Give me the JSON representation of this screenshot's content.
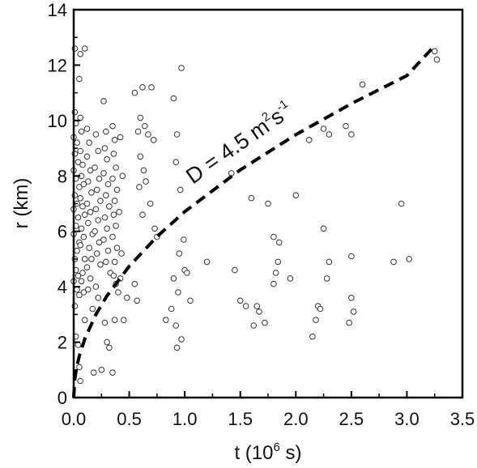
{
  "chart_data": {
    "type": "scatter",
    "xlim": [
      0,
      3.5
    ],
    "ylim": [
      0,
      14
    ],
    "x_ticks": [
      "0.0",
      "0.5",
      "1.0",
      "1.5",
      "2.0",
      "2.5",
      "3.0",
      "3.5"
    ],
    "y_ticks": [
      "0",
      "2",
      "4",
      "6",
      "8",
      "10",
      "12",
      "14"
    ],
    "xlabel": {
      "base": "t (10",
      "sup": "6",
      "tail": " s)"
    },
    "ylabel": "r (km)",
    "grid": false,
    "marker": "open-circle",
    "marker_color": "#333333",
    "curve": {
      "style": "dashed",
      "color": "#000000",
      "D": 4.5,
      "label_parts": {
        "a": "D = 4.5 m",
        "b": "2",
        "c": "s",
        "d": "-1"
      },
      "x": [
        0,
        0.01,
        0.025,
        0.05,
        0.1,
        0.2,
        0.3,
        0.5,
        0.75,
        1.0,
        1.5,
        2.0,
        2.5,
        3.0,
        3.25
      ],
      "y": [
        0,
        0.67,
        1.06,
        1.5,
        2.12,
        3.0,
        3.67,
        4.74,
        5.81,
        6.71,
        8.22,
        9.49,
        10.61,
        11.62,
        12.7
      ]
    },
    "points": [
      [
        0.01,
        10.3
      ],
      [
        0.02,
        9.9
      ],
      [
        0.0,
        9.4
      ],
      [
        0.03,
        9.2
      ],
      [
        0.01,
        8.8
      ],
      [
        0.04,
        8.5
      ],
      [
        0.0,
        8.2
      ],
      [
        0.02,
        7.9
      ],
      [
        0.05,
        7.6
      ],
      [
        0.01,
        7.3
      ],
      [
        0.03,
        7.0
      ],
      [
        0.0,
        6.8
      ],
      [
        0.04,
        6.5
      ],
      [
        0.02,
        6.2
      ],
      [
        0.0,
        5.9
      ],
      [
        0.05,
        5.6
      ],
      [
        0.03,
        5.3
      ],
      [
        0.01,
        5.0
      ],
      [
        0.02,
        4.6
      ],
      [
        0.04,
        4.4
      ],
      [
        0.0,
        4.2
      ],
      [
        0.03,
        3.9
      ],
      [
        0.05,
        3.7
      ],
      [
        0.01,
        3.3
      ],
      [
        0.02,
        2.2
      ],
      [
        0.04,
        1.9
      ],
      [
        0.06,
        10.1
      ],
      [
        0.07,
        9.6
      ],
      [
        0.06,
        8.9
      ],
      [
        0.08,
        8.4
      ],
      [
        0.07,
        8.0
      ],
      [
        0.09,
        7.7
      ],
      [
        0.06,
        7.2
      ],
      [
        0.08,
        6.9
      ],
      [
        0.1,
        6.6
      ],
      [
        0.07,
        6.1
      ],
      [
        0.09,
        5.8
      ],
      [
        0.06,
        5.5
      ],
      [
        0.1,
        5.0
      ],
      [
        0.08,
        4.5
      ],
      [
        0.07,
        4.2
      ],
      [
        0.09,
        3.8
      ],
      [
        0.1,
        2.8
      ],
      [
        0.12,
        9.7
      ],
      [
        0.14,
        9.2
      ],
      [
        0.12,
        8.7
      ],
      [
        0.15,
        8.2
      ],
      [
        0.13,
        7.8
      ],
      [
        0.16,
        7.4
      ],
      [
        0.12,
        7.0
      ],
      [
        0.15,
        6.7
      ],
      [
        0.13,
        6.3
      ],
      [
        0.17,
        5.9
      ],
      [
        0.14,
        5.4
      ],
      [
        0.16,
        5.0
      ],
      [
        0.12,
        4.7
      ],
      [
        0.15,
        4.3
      ],
      [
        0.13,
        3.9
      ],
      [
        0.17,
        3.2
      ],
      [
        0.2,
        9.5
      ],
      [
        0.22,
        8.9
      ],
      [
        0.19,
        8.3
      ],
      [
        0.23,
        7.9
      ],
      [
        0.21,
        7.5
      ],
      [
        0.24,
        7.1
      ],
      [
        0.2,
        6.8
      ],
      [
        0.22,
        6.4
      ],
      [
        0.19,
        6.0
      ],
      [
        0.23,
        5.6
      ],
      [
        0.21,
        5.2
      ],
      [
        0.24,
        4.8
      ],
      [
        0.2,
        4.0
      ],
      [
        0.22,
        3.6
      ],
      [
        0.18,
        0.9
      ],
      [
        0.27,
        10.7
      ],
      [
        0.29,
        9.6
      ],
      [
        0.28,
        9.0
      ],
      [
        0.3,
        8.6
      ],
      [
        0.27,
        8.1
      ],
      [
        0.31,
        7.7
      ],
      [
        0.29,
        7.3
      ],
      [
        0.32,
        6.9
      ],
      [
        0.28,
        6.5
      ],
      [
        0.3,
        6.1
      ],
      [
        0.27,
        5.7
      ],
      [
        0.31,
        5.3
      ],
      [
        0.29,
        4.9
      ],
      [
        0.33,
        4.5
      ],
      [
        0.28,
        2.7
      ],
      [
        0.3,
        2.0
      ],
      [
        0.32,
        1.8
      ],
      [
        0.35,
        9.8
      ],
      [
        0.37,
        9.3
      ],
      [
        0.36,
        8.8
      ],
      [
        0.38,
        8.3
      ],
      [
        0.35,
        7.9
      ],
      [
        0.39,
        7.5
      ],
      [
        0.37,
        7.1
      ],
      [
        0.36,
        6.6
      ],
      [
        0.38,
        6.2
      ],
      [
        0.35,
        5.8
      ],
      [
        0.39,
        5.4
      ],
      [
        0.37,
        4.9
      ],
      [
        0.36,
        4.4
      ],
      [
        0.38,
        4.1
      ],
      [
        0.4,
        3.8
      ],
      [
        0.37,
        2.8
      ],
      [
        0.35,
        0.9
      ],
      [
        0.42,
        9.4
      ],
      [
        0.44,
        8.0
      ],
      [
        0.41,
        6.7
      ],
      [
        0.43,
        5.2
      ],
      [
        0.42,
        4.3
      ],
      [
        0.1,
        12.6
      ],
      [
        0.06,
        12.4
      ],
      [
        0.05,
        11.5
      ],
      [
        0.01,
        12.6
      ],
      [
        0.05,
        1.1
      ],
      [
        0.06,
        0.6
      ],
      [
        0.25,
        1.0
      ],
      [
        0.55,
        11.0
      ],
      [
        0.62,
        11.2
      ],
      [
        0.7,
        11.2
      ],
      [
        0.6,
        10.1
      ],
      [
        0.64,
        9.8
      ],
      [
        0.58,
        9.6
      ],
      [
        0.67,
        9.5
      ],
      [
        0.72,
        9.3
      ],
      [
        0.6,
        8.7
      ],
      [
        0.63,
        8.2
      ],
      [
        0.65,
        7.8
      ],
      [
        0.59,
        7.6
      ],
      [
        0.69,
        7.0
      ],
      [
        0.62,
        6.6
      ],
      [
        0.73,
        6.1
      ],
      [
        0.75,
        5.8
      ],
      [
        0.55,
        4.1
      ],
      [
        0.57,
        3.5
      ],
      [
        0.48,
        3.6
      ],
      [
        0.45,
        2.8
      ],
      [
        0.9,
        10.8
      ],
      [
        0.97,
        11.9
      ],
      [
        0.93,
        9.5
      ],
      [
        0.92,
        8.5
      ],
      [
        0.96,
        7.5
      ],
      [
        0.99,
        5.7
      ],
      [
        0.95,
        5.2
      ],
      [
        1.0,
        4.6
      ],
      [
        0.9,
        4.3
      ],
      [
        0.94,
        3.8
      ],
      [
        1.05,
        3.5
      ],
      [
        0.88,
        3.2
      ],
      [
        0.83,
        2.8
      ],
      [
        0.92,
        2.6
      ],
      [
        0.97,
        2.1
      ],
      [
        0.93,
        1.8
      ],
      [
        1.02,
        4.5
      ],
      [
        1.2,
        4.9
      ],
      [
        1.42,
        8.1
      ],
      [
        1.45,
        4.6
      ],
      [
        1.6,
        7.2
      ],
      [
        1.75,
        7.0
      ],
      [
        1.8,
        5.8
      ],
      [
        1.85,
        5.6
      ],
      [
        1.84,
        4.9
      ],
      [
        1.82,
        4.5
      ],
      [
        1.8,
        4.1
      ],
      [
        1.5,
        3.5
      ],
      [
        1.55,
        3.3
      ],
      [
        1.65,
        3.3
      ],
      [
        1.67,
        3.1
      ],
      [
        1.62,
        2.6
      ],
      [
        1.72,
        2.7
      ],
      [
        1.95,
        4.3
      ],
      [
        2.0,
        7.3
      ],
      [
        2.12,
        9.3
      ],
      [
        2.25,
        9.7
      ],
      [
        2.3,
        9.5
      ],
      [
        2.45,
        9.8
      ],
      [
        2.5,
        9.5
      ],
      [
        2.25,
        6.1
      ],
      [
        2.3,
        4.9
      ],
      [
        2.28,
        4.3
      ],
      [
        2.2,
        3.3
      ],
      [
        2.22,
        3.2
      ],
      [
        2.18,
        2.8
      ],
      [
        2.15,
        2.2
      ],
      [
        2.5,
        5.1
      ],
      [
        2.5,
        3.6
      ],
      [
        2.52,
        3.1
      ],
      [
        2.48,
        2.7
      ],
      [
        2.6,
        11.3
      ],
      [
        2.95,
        7.0
      ],
      [
        2.88,
        4.9
      ],
      [
        3.02,
        5.0
      ],
      [
        3.25,
        12.5
      ],
      [
        3.27,
        12.2
      ]
    ]
  },
  "page": {
    "bg": "#ffffff"
  }
}
